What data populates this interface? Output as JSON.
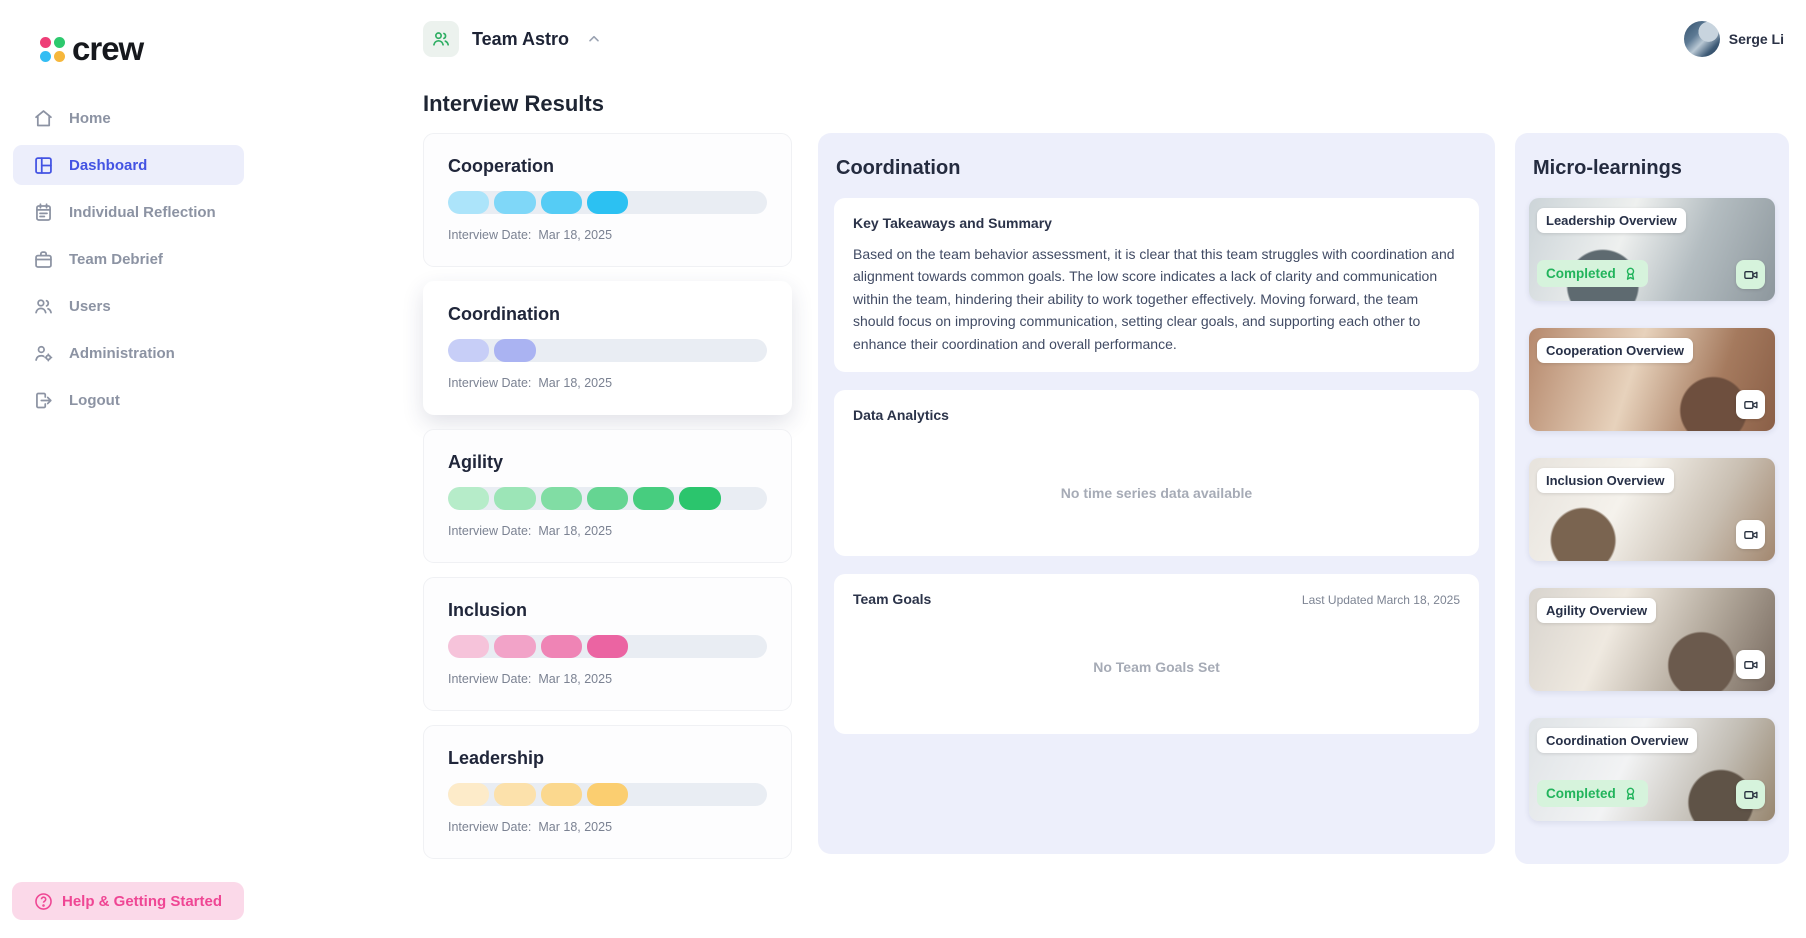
{
  "brand": {
    "name": "crew",
    "dot_colors": [
      "#ee3e77",
      "#2dc96e",
      "#33bdf3",
      "#f6b73c"
    ]
  },
  "sidebar": {
    "items": [
      {
        "id": "home",
        "label": "Home",
        "icon": "home",
        "active": false
      },
      {
        "id": "dashboard",
        "label": "Dashboard",
        "icon": "dashboard",
        "active": true
      },
      {
        "id": "individual-reflection",
        "label": "Individual Reflection",
        "icon": "reflection",
        "active": false
      },
      {
        "id": "team-debrief",
        "label": "Team Debrief",
        "icon": "briefcase",
        "active": false
      },
      {
        "id": "users",
        "label": "Users",
        "icon": "users",
        "active": false
      },
      {
        "id": "administration",
        "label": "Administration",
        "icon": "admin",
        "active": false
      },
      {
        "id": "logout",
        "label": "Logout",
        "icon": "logout",
        "active": false
      }
    ],
    "help_label": "Help & Getting Started",
    "help_accent": "#ef4694"
  },
  "header": {
    "team_name": "Team Astro",
    "user_name": "Serge Li"
  },
  "interview_results": {
    "title": "Interview Results",
    "date_label": "Interview Date:",
    "max_segments": 7,
    "cards": [
      {
        "id": "cooperation",
        "name": "Cooperation",
        "score": 4,
        "date": "Mar 18, 2025",
        "selected": false,
        "segment_colors": [
          "#ace4fa",
          "#7fd7f8",
          "#55ccf5",
          "#2cc1f2"
        ]
      },
      {
        "id": "coordination",
        "name": "Coordination",
        "score": 2,
        "date": "Mar 18, 2025",
        "selected": true,
        "segment_colors": [
          "#c7cef7",
          "#aab3f2"
        ]
      },
      {
        "id": "agility",
        "name": "Agility",
        "score": 6,
        "date": "Mar 18, 2025",
        "selected": false,
        "segment_colors": [
          "#b6ecc9",
          "#9ce5b7",
          "#81dda4",
          "#65d592",
          "#47cd7f",
          "#2bc56d"
        ]
      },
      {
        "id": "inclusion",
        "name": "Inclusion",
        "score": 4,
        "date": "Mar 18, 2025",
        "selected": false,
        "segment_colors": [
          "#f6c3da",
          "#f2a3c8",
          "#ef84b5",
          "#eb64a2"
        ]
      },
      {
        "id": "leadership",
        "name": "Leadership",
        "score": 4,
        "date": "Mar 18, 2025",
        "selected": false,
        "segment_colors": [
          "#fdebc9",
          "#fce1ab",
          "#fbd88e",
          "#fbce70"
        ]
      }
    ],
    "track_color": "#e9edf3"
  },
  "detail_panel": {
    "title": "Coordination",
    "key_takeaways": {
      "title": "Key Takeaways and Summary",
      "body": "Based on the team behavior assessment, it is clear that this team struggles with coordination and alignment towards common goals. The low score indicates a lack of clarity and communication within the team, hindering their ability to work together effectively. Moving forward, the team should focus on improving communication, setting clear goals, and supporting each other to enhance their coordination and overall performance."
    },
    "data_analytics": {
      "title": "Data Analytics",
      "empty_message": "No time series data available"
    },
    "team_goals": {
      "title": "Team Goals",
      "last_updated": "Last Updated March 18, 2025",
      "empty_message": "No Team Goals Set"
    }
  },
  "micro_learnings": {
    "title": "Micro-learnings",
    "completed_label": "Completed",
    "completed_color": "#22b45c",
    "cards": [
      {
        "id": "leadership-overview",
        "label": "Leadership Overview",
        "completed": true
      },
      {
        "id": "cooperation-overview",
        "label": "Cooperation Overview",
        "completed": false
      },
      {
        "id": "inclusion-overview",
        "label": "Inclusion Overview",
        "completed": false
      },
      {
        "id": "agility-overview",
        "label": "Agility Overview",
        "completed": false
      },
      {
        "id": "coordination-overview",
        "label": "Coordination Overview",
        "completed": true
      }
    ]
  }
}
